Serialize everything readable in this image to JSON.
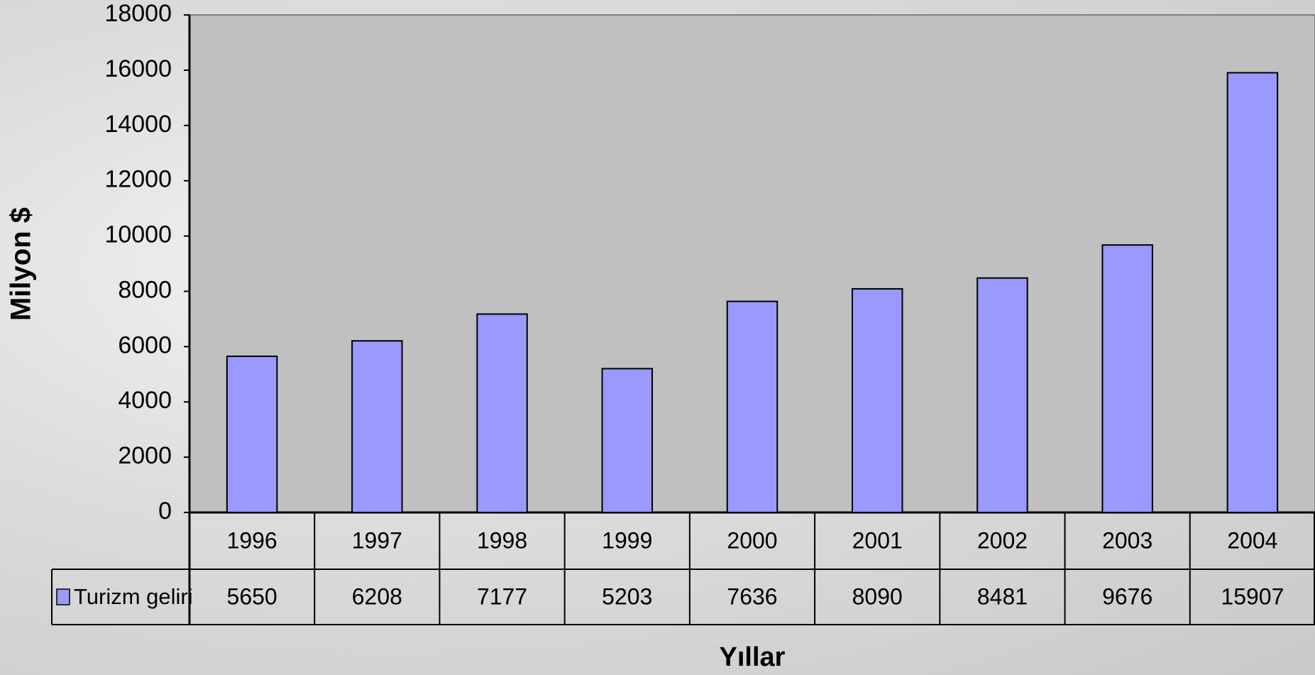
{
  "chart_data": {
    "type": "bar",
    "y_label": "Milyon $",
    "x_label": "Yıllar",
    "categories": [
      "1996",
      "1997",
      "1998",
      "1999",
      "2000",
      "2001",
      "2002",
      "2003",
      "2004"
    ],
    "series": [
      {
        "name": "Turizm geliri",
        "color": "#9999ff",
        "values": [
          5650,
          6208,
          7177,
          5203,
          7636,
          8090,
          8481,
          9676,
          15907
        ]
      }
    ],
    "ylim": [
      0,
      18000
    ],
    "yticks": [
      0,
      2000,
      4000,
      6000,
      8000,
      10000,
      12000,
      14000,
      16000,
      18000
    ]
  }
}
